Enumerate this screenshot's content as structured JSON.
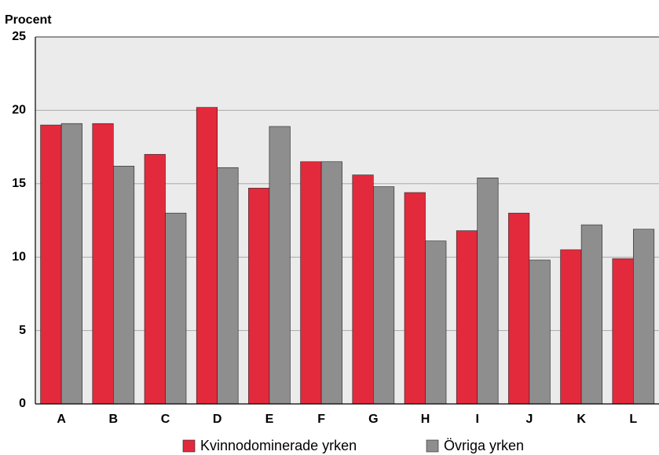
{
  "chart_data": {
    "type": "bar",
    "y_axis_label": "Procent",
    "categories": [
      "A",
      "B",
      "C",
      "D",
      "E",
      "F",
      "G",
      "H",
      "I",
      "J",
      "K",
      "L"
    ],
    "series": [
      {
        "name": "Kvinnodominerade yrken",
        "color": "#e32a3c",
        "values": [
          19.0,
          19.1,
          17.0,
          20.2,
          14.7,
          16.5,
          15.6,
          14.4,
          11.8,
          13.0,
          10.5,
          9.9
        ]
      },
      {
        "name": "Övriga yrken",
        "color": "#8e8e8e",
        "values": [
          19.1,
          16.2,
          13.0,
          16.1,
          18.9,
          16.5,
          14.8,
          11.1,
          15.4,
          9.8,
          12.2,
          11.9
        ]
      }
    ],
    "ylim": [
      0,
      25
    ],
    "yticks": [
      0,
      5,
      10,
      15,
      20,
      25
    ],
    "grid": true
  }
}
